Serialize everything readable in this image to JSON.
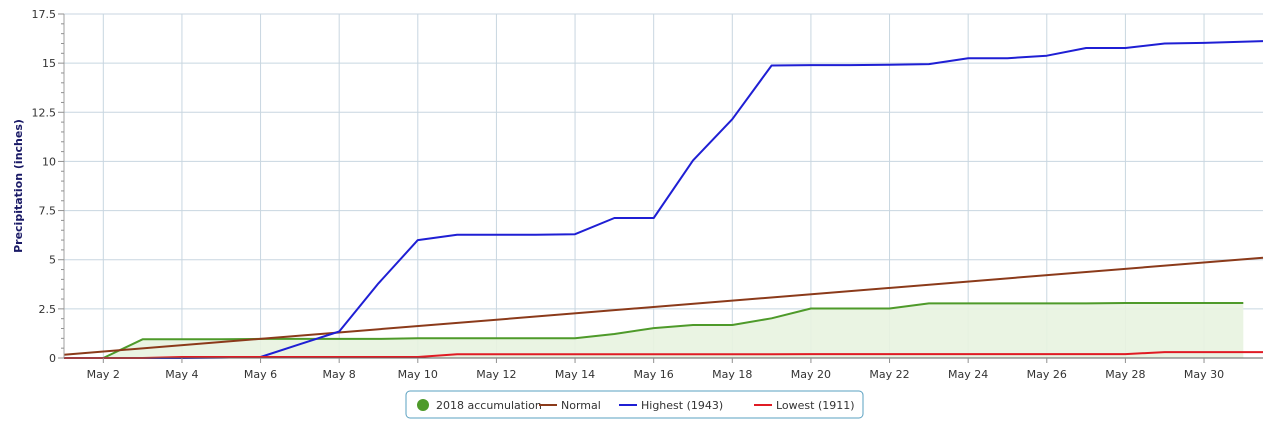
{
  "chart_data": {
    "type": "line",
    "ylabel": "Precipitation (inches)",
    "xlabel": "",
    "ylim": [
      0,
      17.5
    ],
    "yticks": [
      0,
      2.5,
      5,
      7.5,
      10,
      12.5,
      15,
      17.5
    ],
    "ytick_labels": [
      "0",
      "2.5",
      "5",
      "7.5",
      "10",
      "12.5",
      "15",
      "17.5"
    ],
    "xlim": [
      1,
      31.5
    ],
    "xticks": [
      2,
      4,
      6,
      8,
      10,
      12,
      14,
      16,
      18,
      20,
      22,
      24,
      26,
      28,
      30
    ],
    "xtick_labels": [
      "May 2",
      "May 4",
      "May 6",
      "May 8",
      "May 10",
      "May 12",
      "May 14",
      "May 16",
      "May 18",
      "May 20",
      "May 22",
      "May 24",
      "May 26",
      "May 28",
      "May 30"
    ],
    "grid": true,
    "legend_position": "bottom-center",
    "series": [
      {
        "name": "2018 accumulation",
        "color": "#4e9a2a",
        "fill": "#e8f3e0",
        "x": [
          2,
          3,
          4,
          5,
          6,
          7,
          8,
          9,
          10,
          11,
          12,
          13,
          14,
          15,
          16,
          17,
          18,
          19,
          20,
          21,
          22,
          23,
          24,
          25,
          26,
          27,
          28,
          29,
          30,
          31
        ],
        "values": [
          0,
          0.95,
          0.95,
          0.95,
          0.97,
          0.97,
          0.97,
          0.97,
          1.0,
          1.0,
          1.0,
          1.0,
          1.0,
          1.22,
          1.52,
          1.68,
          1.68,
          2.02,
          2.52,
          2.52,
          2.52,
          2.78,
          2.78,
          2.78,
          2.78,
          2.78,
          2.8,
          2.8,
          2.8,
          2.8
        ]
      },
      {
        "name": "Normal",
        "color": "#8b3a1a",
        "x": [
          1,
          31.5
        ],
        "values": [
          0.17,
          5.1
        ]
      },
      {
        "name": "Highest (1943)",
        "color": "#1f1fd4",
        "x": [
          1,
          2,
          3,
          4,
          5,
          6,
          7,
          8,
          9,
          10,
          11,
          12,
          13,
          14,
          15,
          16,
          17,
          18,
          19,
          20,
          21,
          22,
          23,
          24,
          25,
          26,
          27,
          28,
          29,
          30,
          31.5
        ],
        "values": [
          0,
          0,
          0,
          0,
          0.02,
          0.05,
          0.7,
          1.35,
          3.8,
          6.0,
          6.27,
          6.27,
          6.27,
          6.3,
          7.12,
          7.12,
          10.05,
          12.15,
          14.88,
          14.9,
          14.9,
          14.92,
          14.95,
          15.25,
          15.25,
          15.38,
          15.77,
          15.77,
          16.0,
          16.03,
          16.12
        ]
      },
      {
        "name": "Lowest (1911)",
        "color": "#e01b24",
        "x": [
          1,
          2,
          3,
          4,
          5,
          6,
          7,
          8,
          9,
          10,
          11,
          12,
          13,
          14,
          15,
          16,
          17,
          18,
          19,
          20,
          21,
          22,
          23,
          24,
          25,
          26,
          27,
          28,
          29,
          30,
          31.5
        ],
        "values": [
          0,
          0,
          0,
          0.05,
          0.05,
          0.05,
          0.05,
          0.05,
          0.05,
          0.05,
          0.19,
          0.19,
          0.19,
          0.19,
          0.19,
          0.19,
          0.19,
          0.19,
          0.19,
          0.2,
          0.2,
          0.2,
          0.2,
          0.2,
          0.2,
          0.2,
          0.2,
          0.2,
          0.3,
          0.3,
          0.3
        ]
      }
    ]
  }
}
